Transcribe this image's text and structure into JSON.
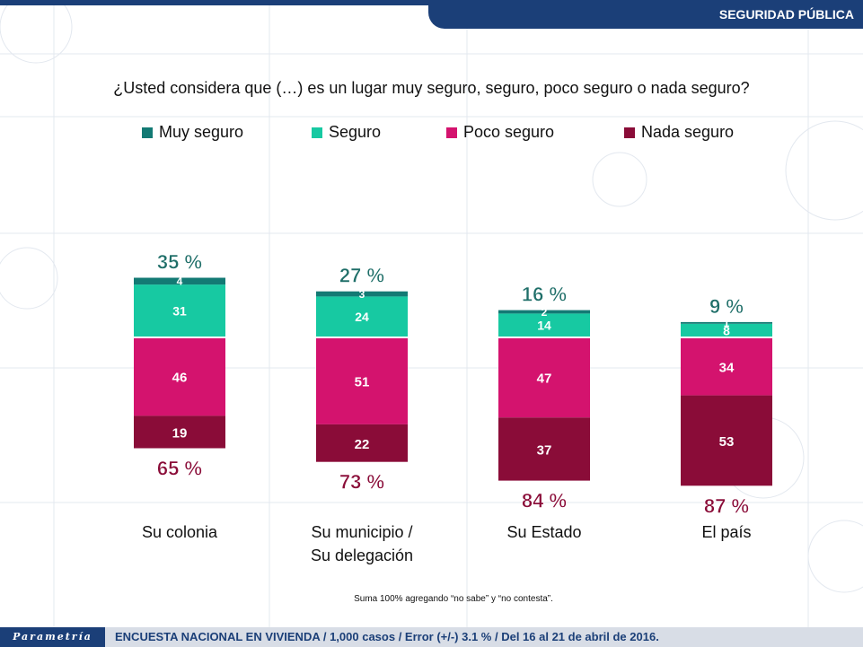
{
  "header": {
    "section_title": "SEGURIDAD PÚBLICA"
  },
  "question": "¿Usted considera que (…) es un lugar muy seguro, seguro, poco seguro o nada seguro?",
  "colors": {
    "muy_seguro": "#137a74",
    "seguro": "#17c9a2",
    "poco_seguro": "#d4136e",
    "nada_seguro": "#8a0c38",
    "total_label": "#1e6e68",
    "brand_blue": "#1b3f78"
  },
  "chart_data": {
    "type": "bar",
    "stacked": "diverging",
    "categories": [
      "Su colonia",
      "Su municipio / Su delegación",
      "Su Estado",
      "El país"
    ],
    "category_lines": [
      [
        "Su colonia"
      ],
      [
        "Su municipio /",
        "Su delegación"
      ],
      [
        "Su Estado"
      ],
      [
        "El país"
      ]
    ],
    "series": [
      {
        "name": "Muy seguro",
        "values": [
          4,
          3,
          2,
          1
        ],
        "direction": "up"
      },
      {
        "name": "Seguro",
        "values": [
          31,
          24,
          14,
          8
        ],
        "direction": "up"
      },
      {
        "name": "Poco seguro",
        "values": [
          46,
          51,
          47,
          34
        ],
        "direction": "down"
      },
      {
        "name": "Nada seguro",
        "values": [
          19,
          22,
          37,
          53
        ],
        "direction": "down"
      }
    ],
    "positive_totals": [
      "35 %",
      "27 %",
      "16 %",
      "9 %"
    ],
    "negative_totals": [
      "65 %",
      "73 %",
      "84 %",
      "87 %"
    ],
    "ylim": [
      -100,
      100
    ],
    "legend_position": "top"
  },
  "footnote": "Suma 100% agregando “no sabe” y “no contesta”.",
  "footer": {
    "logo": "Parametría",
    "text": "ENCUESTA NACIONAL EN VIVIENDA / 1,000 casos / Error (+/-) 3.1 % / Del 16 al 21 de abril de 2016."
  }
}
